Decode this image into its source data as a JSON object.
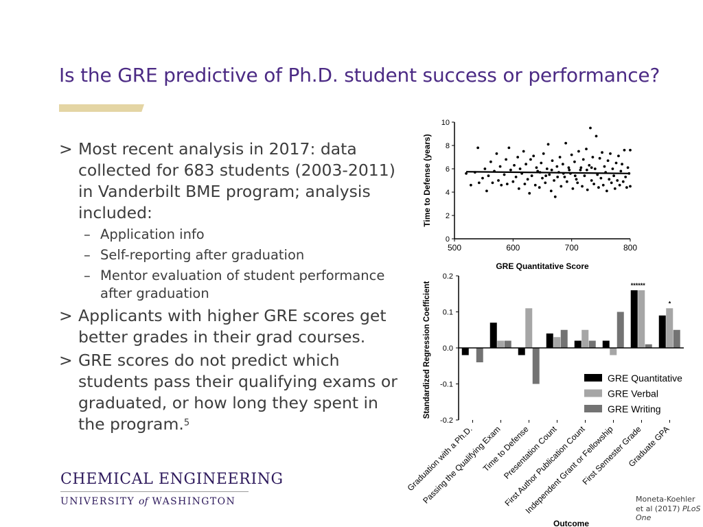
{
  "slide": {
    "title": "Is the GRE predictive of Ph.D. student success or performance?",
    "accent_color": "#4b2a84",
    "gold_color": "#e4d5a4"
  },
  "bullets": {
    "marker": ">",
    "sub_marker": "–",
    "b1": "Most recent analysis in 2017: data collected for 683 students (2003-2011) in Vanderbilt BME program; analysis included:",
    "b1_sub": [
      "Application info",
      "Self-reporting after graduation",
      "Mentor evaluation of student performance after graduation"
    ],
    "b2": "Applicants with higher GRE scores get better grades in their grad courses.",
    "b3": "GRE scores do not predict which students pass their qualifying exams or graduated, or how long they spent in the program.",
    "b3_footnote": "5"
  },
  "logo": {
    "line1": "CHEMICAL ENGINEERING",
    "line2_a": "UNIVERSITY",
    "line2_of": "of",
    "line2_b": "WASHINGTON"
  },
  "citation": {
    "authors": "Moneta-Koehler et al (2017)",
    "journal": "PLoS One"
  },
  "chart_data": [
    {
      "type": "scatter",
      "xlabel": "GRE Quantitative Score",
      "ylabel": "Time to Defense (years)",
      "xlim": [
        500,
        800
      ],
      "ylim": [
        0,
        10
      ],
      "xticks": [
        500,
        600,
        700,
        800
      ],
      "yticks": [
        0,
        2,
        4,
        6,
        8,
        10
      ],
      "points": [
        [
          520,
          5.6
        ],
        [
          528,
          4.6
        ],
        [
          535,
          5.7
        ],
        [
          540,
          7.8
        ],
        [
          542,
          4.8
        ],
        [
          548,
          5.2
        ],
        [
          552,
          6.0
        ],
        [
          555,
          4.1
        ],
        [
          558,
          5.4
        ],
        [
          562,
          6.6
        ],
        [
          565,
          4.8
        ],
        [
          568,
          5.8
        ],
        [
          572,
          7.3
        ],
        [
          575,
          5.0
        ],
        [
          578,
          6.2
        ],
        [
          580,
          4.6
        ],
        [
          585,
          5.5
        ],
        [
          588,
          6.8
        ],
        [
          590,
          4.7
        ],
        [
          593,
          7.8
        ],
        [
          596,
          5.9
        ],
        [
          600,
          4.9
        ],
        [
          602,
          6.3
        ],
        [
          605,
          5.3
        ],
        [
          608,
          7.0
        ],
        [
          610,
          4.3
        ],
        [
          612,
          6.0
        ],
        [
          615,
          5.6
        ],
        [
          618,
          7.5
        ],
        [
          620,
          4.7
        ],
        [
          622,
          6.4
        ],
        [
          625,
          5.1
        ],
        [
          628,
          3.9
        ],
        [
          630,
          6.8
        ],
        [
          632,
          5.4
        ],
        [
          635,
          7.1
        ],
        [
          638,
          4.6
        ],
        [
          640,
          6.1
        ],
        [
          642,
          5.8
        ],
        [
          645,
          4.4
        ],
        [
          648,
          6.5
        ],
        [
          650,
          5.2
        ],
        [
          652,
          7.3
        ],
        [
          655,
          4.8
        ],
        [
          658,
          6.0
        ],
        [
          660,
          8.1
        ],
        [
          662,
          5.5
        ],
        [
          665,
          4.1
        ],
        [
          667,
          6.7
        ],
        [
          670,
          5.0
        ],
        [
          672,
          3.6
        ],
        [
          675,
          6.2
        ],
        [
          678,
          5.7
        ],
        [
          680,
          7.0
        ],
        [
          682,
          4.5
        ],
        [
          685,
          6.4
        ],
        [
          688,
          5.3
        ],
        [
          690,
          8.2
        ],
        [
          692,
          4.9
        ],
        [
          695,
          6.1
        ],
        [
          698,
          5.6
        ],
        [
          700,
          7.2
        ],
        [
          702,
          4.3
        ],
        [
          705,
          6.6
        ],
        [
          708,
          5.1
        ],
        [
          710,
          4.8
        ],
        [
          712,
          7.5
        ],
        [
          715,
          5.9
        ],
        [
          718,
          4.5
        ],
        [
          720,
          6.8
        ],
        [
          722,
          5.4
        ],
        [
          725,
          7.7
        ],
        [
          727,
          4.2
        ],
        [
          730,
          6.3
        ],
        [
          732,
          9.5
        ],
        [
          734,
          5.0
        ],
        [
          736,
          7.0
        ],
        [
          738,
          4.7
        ],
        [
          740,
          6.0
        ],
        [
          742,
          8.8
        ],
        [
          744,
          5.5
        ],
        [
          746,
          4.4
        ],
        [
          748,
          6.9
        ],
        [
          750,
          5.2
        ],
        [
          752,
          7.4
        ],
        [
          754,
          4.6
        ],
        [
          756,
          6.2
        ],
        [
          758,
          5.7
        ],
        [
          760,
          4.1
        ],
        [
          762,
          6.7
        ],
        [
          764,
          5.1
        ],
        [
          766,
          7.3
        ],
        [
          768,
          4.8
        ],
        [
          770,
          6.0
        ],
        [
          772,
          5.4
        ],
        [
          774,
          4.3
        ],
        [
          776,
          6.5
        ],
        [
          778,
          5.0
        ],
        [
          780,
          7.1
        ],
        [
          782,
          4.6
        ],
        [
          784,
          5.8
        ],
        [
          786,
          6.4
        ],
        [
          788,
          4.9
        ],
        [
          790,
          7.6
        ],
        [
          792,
          5.3
        ],
        [
          794,
          4.4
        ],
        [
          796,
          6.1
        ],
        [
          798,
          5.6
        ],
        [
          800,
          7.6
        ],
        [
          800,
          4.5
        ],
        [
          734,
          6.1
        ],
        [
          726,
          5.9
        ],
        [
          716,
          6.1
        ],
        [
          706,
          5.4
        ],
        [
          696,
          5.9
        ],
        [
          686,
          5.6
        ],
        [
          676,
          5.3
        ],
        [
          666,
          5.9
        ],
        [
          656,
          5.4
        ],
        [
          646,
          5.7
        ]
      ],
      "trend_line": [
        [
          520,
          5.75
        ],
        [
          800,
          5.6
        ]
      ]
    },
    {
      "type": "bar",
      "xlabel": "Outcome",
      "ylabel": "Standardized Regression Coefficient",
      "ylim": [
        -0.2,
        0.2
      ],
      "yticks": [
        -0.2,
        -0.1,
        0.0,
        0.1,
        0.2
      ],
      "categories": [
        "Graduation with a Ph.D.",
        "Passing the Qualifying Exam",
        "Time to Defense",
        "Presentation Count",
        "First Author Publication Count",
        "Independent Grant or Fellowship",
        "First Semester Grade",
        "Graduate GPA"
      ],
      "series": [
        {
          "name": "GRE Quantitative",
          "color": "#000000",
          "values": [
            -0.02,
            0.07,
            -0.02,
            0.04,
            0.02,
            0.02,
            0.16,
            0.09
          ]
        },
        {
          "name": "GRE Verbal",
          "color": "#a6a6a6",
          "values": [
            0.0,
            0.02,
            0.11,
            0.03,
            0.05,
            -0.02,
            0.16,
            0.11
          ]
        },
        {
          "name": "GRE Writing",
          "color": "#737373",
          "values": [
            -0.04,
            0.02,
            -0.1,
            0.05,
            0.02,
            0.1,
            0.01,
            0.05
          ]
        }
      ],
      "annotations": [
        {
          "category": 6,
          "series": 0,
          "text": "***"
        },
        {
          "category": 6,
          "series": 1,
          "text": "***"
        },
        {
          "category": 7,
          "series": 1,
          "text": "*"
        }
      ],
      "legend": "bottom-right"
    }
  ]
}
